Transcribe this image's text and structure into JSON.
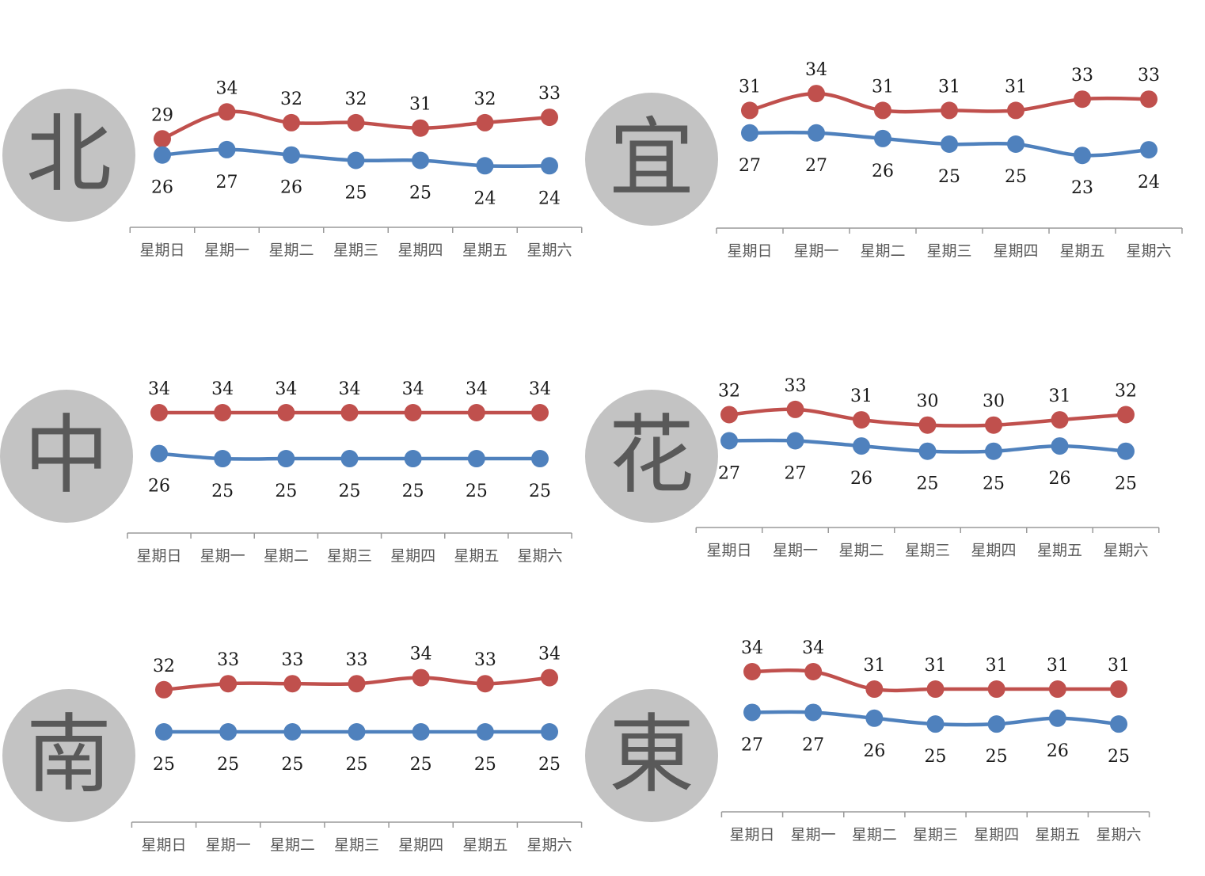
{
  "colors": {
    "high": "#c0504d",
    "low": "#4f81bd",
    "circle": "#c3c3c3",
    "region_text": "#595959"
  },
  "chart_data": [
    {
      "type": "line",
      "region": "北",
      "categories": [
        "星期日",
        "星期一",
        "星期二",
        "星期三",
        "星期四",
        "星期五",
        "星期六"
      ],
      "series": [
        {
          "values": [
            29,
            34,
            32,
            32,
            31,
            32,
            33
          ],
          "color": "#c0504d"
        },
        {
          "values": [
            26,
            27,
            26,
            25,
            25,
            24,
            24
          ],
          "color": "#4f81bd"
        }
      ]
    },
    {
      "type": "line",
      "region": "宜",
      "categories": [
        "星期日",
        "星期一",
        "星期二",
        "星期三",
        "星期四",
        "星期五",
        "星期六"
      ],
      "series": [
        {
          "values": [
            31,
            34,
            31,
            31,
            31,
            33,
            33
          ],
          "color": "#c0504d"
        },
        {
          "values": [
            27,
            27,
            26,
            25,
            25,
            23,
            24
          ],
          "color": "#4f81bd"
        }
      ]
    },
    {
      "type": "line",
      "region": "中",
      "categories": [
        "星期日",
        "星期一",
        "星期二",
        "星期三",
        "星期四",
        "星期五",
        "星期六"
      ],
      "series": [
        {
          "values": [
            34,
            34,
            34,
            34,
            34,
            34,
            34
          ],
          "color": "#c0504d"
        },
        {
          "values": [
            26,
            25,
            25,
            25,
            25,
            25,
            25
          ],
          "color": "#4f81bd"
        }
      ]
    },
    {
      "type": "line",
      "region": "花",
      "categories": [
        "星期日",
        "星期一",
        "星期二",
        "星期三",
        "星期四",
        "星期五",
        "星期六"
      ],
      "series": [
        {
          "values": [
            32,
            33,
            31,
            30,
            30,
            31,
            32
          ],
          "color": "#c0504d"
        },
        {
          "values": [
            27,
            27,
            26,
            25,
            25,
            26,
            25
          ],
          "color": "#4f81bd"
        }
      ]
    },
    {
      "type": "line",
      "region": "南",
      "categories": [
        "星期日",
        "星期一",
        "星期二",
        "星期三",
        "星期四",
        "星期五",
        "星期六"
      ],
      "series": [
        {
          "values": [
            32,
            33,
            33,
            33,
            34,
            33,
            34
          ],
          "color": "#c0504d"
        },
        {
          "values": [
            25,
            25,
            25,
            25,
            25,
            25,
            25
          ],
          "color": "#4f81bd"
        }
      ]
    },
    {
      "type": "line",
      "region": "東",
      "categories": [
        "星期日",
        "星期一",
        "星期二",
        "星期三",
        "星期四",
        "星期五",
        "星期六"
      ],
      "series": [
        {
          "values": [
            34,
            34,
            31,
            31,
            31,
            31,
            31
          ],
          "color": "#c0504d"
        },
        {
          "values": [
            27,
            27,
            26,
            25,
            25,
            26,
            25
          ],
          "color": "#4f81bd"
        }
      ]
    }
  ]
}
